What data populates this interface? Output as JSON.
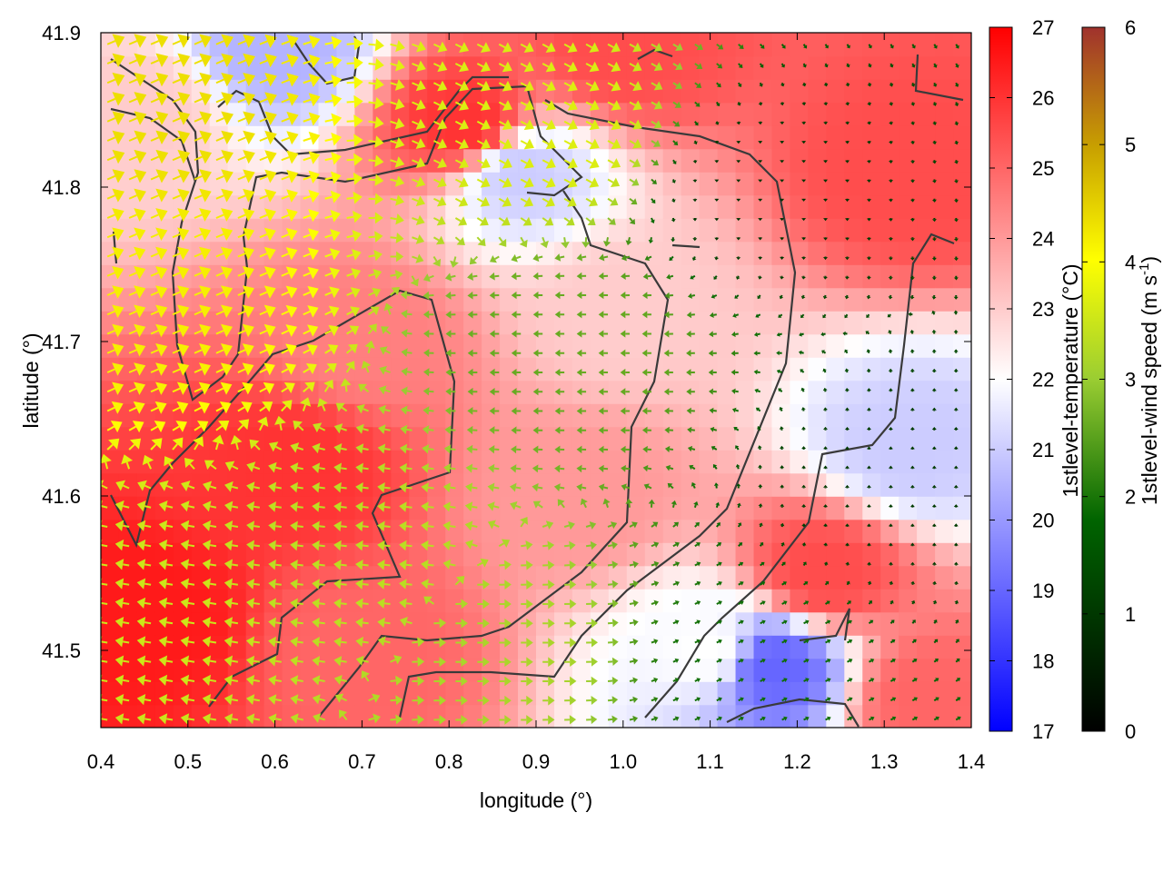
{
  "chart_data": {
    "type": "heatmap",
    "title": "",
    "xlabel": "longitude (°)",
    "ylabel": "latitude (°)",
    "xlim": [
      0.4,
      1.4
    ],
    "ylim": [
      41.45,
      41.9
    ],
    "x_ticks": [
      0.4,
      0.5,
      0.6,
      0.7,
      0.8,
      0.9,
      1.0,
      1.1,
      1.2,
      1.3,
      1.4
    ],
    "x_tick_labels": [
      "0.4",
      "0.5",
      "0.6",
      "0.7",
      "0.8",
      "0.9",
      "1.0",
      "1.1",
      "1.2",
      "1.3",
      "1.4"
    ],
    "y_ticks": [
      41.5,
      41.6,
      41.7,
      41.8,
      41.9
    ],
    "y_tick_labels": [
      "41.5",
      "41.6",
      "41.7",
      "41.8",
      "41.9"
    ],
    "grid": false,
    "temperature_colorbar": {
      "label": "1stlevel-temperature (°C)",
      "range": [
        17,
        27
      ],
      "ticks": [
        "17",
        "18",
        "19",
        "20",
        "21",
        "22",
        "23",
        "24",
        "25",
        "26",
        "27"
      ],
      "colors": [
        "#0000ff",
        "#ffffff",
        "#ff0000"
      ]
    },
    "wind_colorbar": {
      "label": "1stlevel-wind speed (m s",
      "label_sup": "-1",
      "label_end": ")",
      "range": [
        0,
        6
      ],
      "ticks": [
        "0",
        "1",
        "2",
        "3",
        "4",
        "5",
        "6"
      ],
      "colors": [
        "#000000",
        "#006400",
        "#9acd32",
        "#ffff00",
        "#c8a000",
        "#a0322d"
      ]
    },
    "temperature_field": [
      {
        "lon": 0.45,
        "lat": 41.85,
        "value": 23.0
      },
      {
        "lon": 0.82,
        "lat": 41.84,
        "value": 26.0
      },
      {
        "lon": 1.0,
        "lat": 41.89,
        "value": 25.5
      },
      {
        "lon": 1.33,
        "lat": 41.81,
        "value": 25.5
      },
      {
        "lon": 0.88,
        "lat": 41.81,
        "value": 21.0
      },
      {
        "lon": 0.6,
        "lat": 41.89,
        "value": 20.5
      },
      {
        "lon": 0.7,
        "lat": 41.7,
        "value": 24.5
      },
      {
        "lon": 1.0,
        "lat": 41.72,
        "value": 23.0
      },
      {
        "lon": 0.95,
        "lat": 41.6,
        "value": 24.0
      },
      {
        "lon": 0.62,
        "lat": 41.62,
        "value": 26.0
      },
      {
        "lon": 0.45,
        "lat": 41.52,
        "value": 26.5
      },
      {
        "lon": 0.7,
        "lat": 41.5,
        "value": 25.0
      },
      {
        "lon": 1.17,
        "lat": 41.49,
        "value": 19.0
      },
      {
        "lon": 1.33,
        "lat": 41.63,
        "value": 21.0
      },
      {
        "lon": 1.23,
        "lat": 41.55,
        "value": 25.5
      },
      {
        "lon": 1.35,
        "lat": 41.47,
        "value": 25.0
      },
      {
        "lon": 1.1,
        "lat": 41.5,
        "value": 22.0
      }
    ],
    "wind_arrows_note_values": "arrow direction and speed sampled on a regular lon/lat grid",
    "wind_field_regions": [
      {
        "lon": 0.45,
        "lat": 41.85,
        "u": 3.5,
        "v": 1.5,
        "speed": 4.0
      },
      {
        "lon": 0.45,
        "lat": 41.72,
        "u": 3.5,
        "v": 1.5,
        "speed": 3.8
      },
      {
        "lon": 0.45,
        "lat": 41.52,
        "u": -3.0,
        "v": 0.5,
        "speed": 3.0
      },
      {
        "lon": 0.7,
        "lat": 41.55,
        "u": -2.8,
        "v": 0.3,
        "speed": 2.8
      },
      {
        "lon": 0.85,
        "lat": 41.5,
        "u": 2.5,
        "v": 0.0,
        "speed": 2.6
      },
      {
        "lon": 0.95,
        "lat": 41.7,
        "u": -2.0,
        "v": 0.0,
        "speed": 2.0
      },
      {
        "lon": 0.92,
        "lat": 41.84,
        "u": 2.8,
        "v": -1.5,
        "speed": 3.2
      },
      {
        "lon": 1.15,
        "lat": 41.8,
        "u": 0.0,
        "v": -0.5,
        "speed": 0.6
      },
      {
        "lon": 1.3,
        "lat": 41.6,
        "u": 0.0,
        "v": 0.6,
        "speed": 0.7
      },
      {
        "lon": 1.15,
        "lat": 41.49,
        "u": 1.0,
        "v": 0.5,
        "speed": 1.3
      }
    ]
  }
}
